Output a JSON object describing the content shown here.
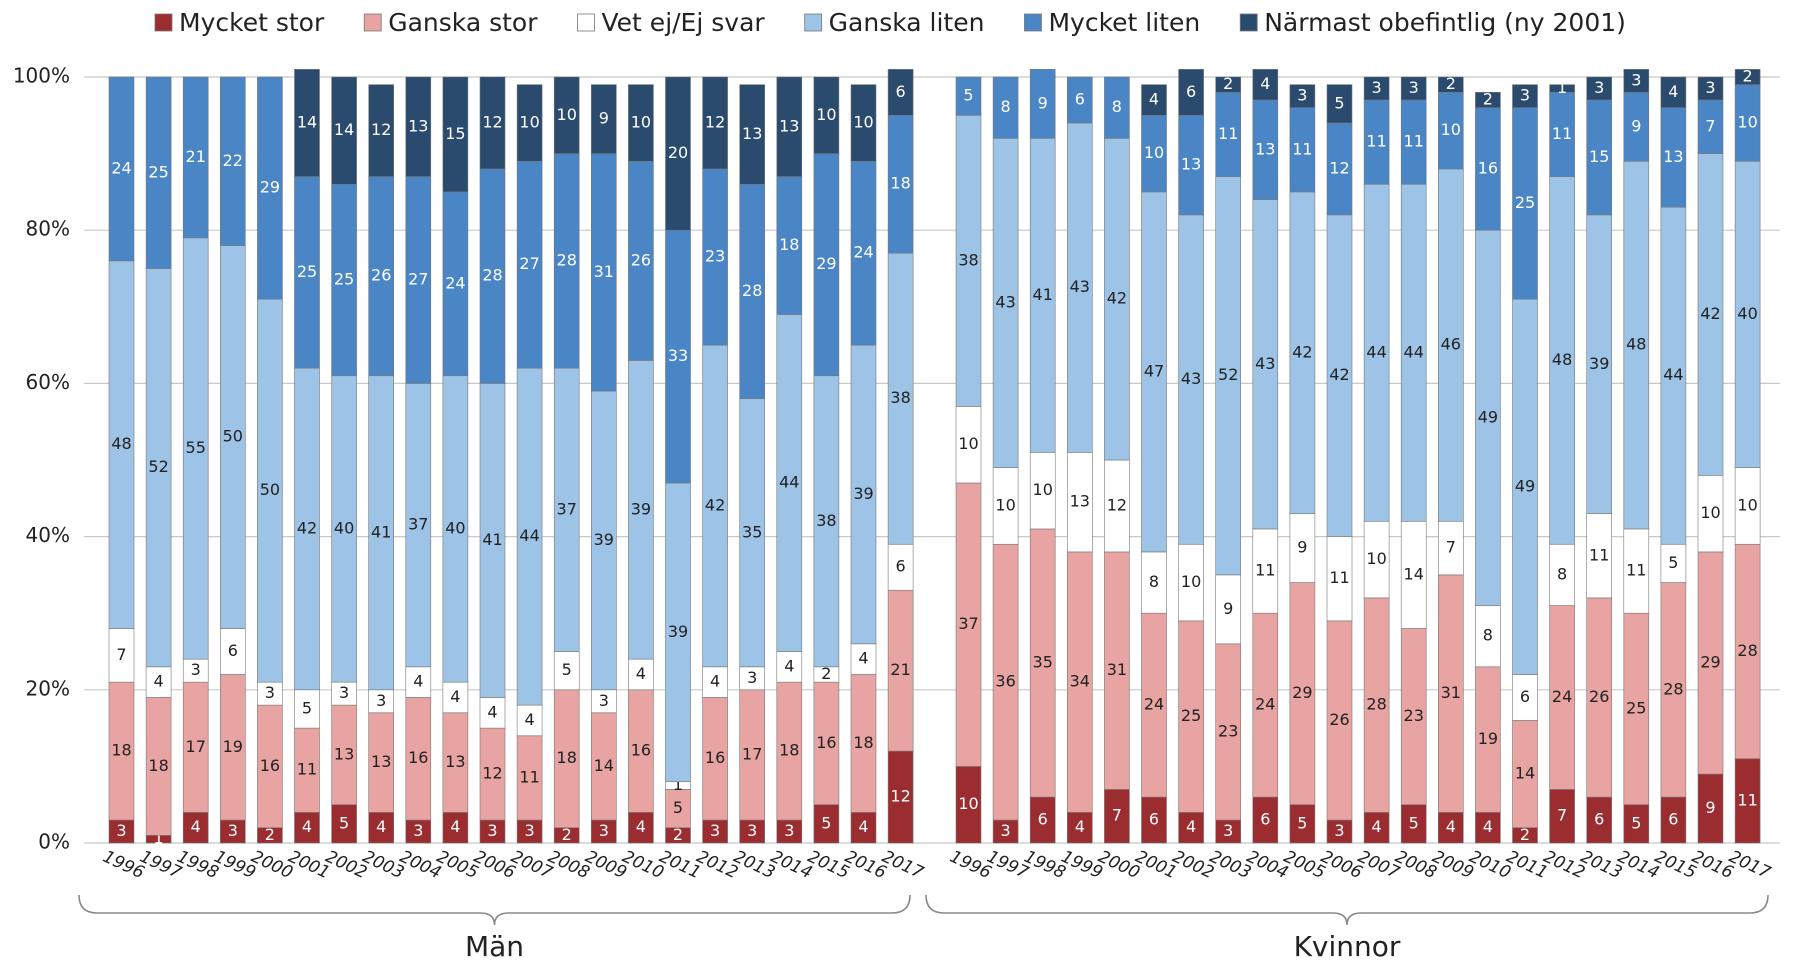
{
  "chart_data": {
    "type": "stacked_bar",
    "series": [
      {
        "name": "Mycket stor",
        "color": "#9b2d30",
        "values": [
          3,
          1,
          4,
          3,
          2,
          4,
          5,
          4,
          3,
          4,
          3,
          3,
          2,
          3,
          4,
          2,
          3,
          3,
          3,
          5,
          4,
          12,
          10,
          3,
          6,
          4,
          7,
          6,
          4,
          3,
          6,
          5,
          3,
          4,
          5,
          4,
          4,
          2,
          7,
          6,
          5,
          6,
          9,
          11
        ]
      },
      {
        "name": "Ganska stor",
        "color": "#e8a3a3",
        "values": [
          18,
          18,
          17,
          19,
          16,
          11,
          13,
          13,
          16,
          13,
          12,
          11,
          18,
          14,
          16,
          5,
          16,
          17,
          18,
          16,
          18,
          21,
          37,
          36,
          35,
          34,
          31,
          24,
          25,
          23,
          24,
          29,
          26,
          28,
          23,
          31,
          19,
          14,
          24,
          26,
          25,
          28,
          29,
          28
        ]
      },
      {
        "name": "Vet ej/Ej svar",
        "color": "#ffffff",
        "values": [
          7,
          4,
          3,
          6,
          3,
          5,
          3,
          3,
          4,
          4,
          4,
          4,
          5,
          3,
          4,
          1,
          4,
          3,
          4,
          2,
          4,
          6,
          10,
          10,
          10,
          13,
          12,
          8,
          10,
          9,
          11,
          9,
          11,
          10,
          14,
          7,
          8,
          6,
          8,
          11,
          11,
          5,
          10,
          10
        ]
      },
      {
        "name": "Ganska liten",
        "color": "#9dc3e6",
        "values": [
          48,
          52,
          55,
          50,
          50,
          42,
          40,
          41,
          37,
          40,
          41,
          44,
          37,
          39,
          39,
          39,
          42,
          35,
          44,
          38,
          39,
          38,
          38,
          43,
          41,
          43,
          42,
          47,
          43,
          52,
          43,
          42,
          42,
          44,
          44,
          46,
          49,
          49,
          48,
          39,
          48,
          44,
          42,
          40
        ]
      },
      {
        "name": "Mycket liten",
        "color": "#4a86c5",
        "values": [
          24,
          25,
          21,
          22,
          29,
          25,
          25,
          26,
          27,
          24,
          28,
          27,
          28,
          31,
          26,
          33,
          23,
          28,
          18,
          29,
          24,
          18,
          5,
          8,
          9,
          6,
          8,
          10,
          13,
          11,
          13,
          11,
          12,
          11,
          11,
          10,
          16,
          25,
          11,
          15,
          9,
          13,
          7,
          10
        ]
      },
      {
        "name": "Närmast obefintlig (ny 2001)",
        "color": "#2a4a6e",
        "values": [
          null,
          null,
          null,
          null,
          null,
          14,
          14,
          12,
          13,
          15,
          12,
          10,
          10,
          9,
          10,
          20,
          12,
          13,
          13,
          10,
          10,
          6,
          null,
          null,
          null,
          null,
          null,
          4,
          6,
          2,
          4,
          3,
          5,
          3,
          3,
          2,
          2,
          3,
          1,
          3,
          3,
          4,
          3,
          2
        ]
      }
    ],
    "groups": [
      {
        "name": "Män",
        "categories": [
          "1996",
          "1997",
          "1998",
          "1999",
          "2000",
          "2001",
          "2002",
          "2003",
          "2004",
          "2005",
          "2006",
          "2007",
          "2008",
          "2009",
          "2010",
          "2011",
          "2012",
          "2013",
          "2014",
          "2015",
          "2016",
          "2017"
        ]
      },
      {
        "name": "Kvinnor",
        "categories": [
          "1996",
          "1997",
          "1998",
          "1999",
          "2000",
          "2001",
          "2002",
          "2003",
          "2004",
          "2005",
          "2006",
          "2007",
          "2008",
          "2009",
          "2010",
          "2011",
          "2012",
          "2013",
          "2014",
          "2015",
          "2016",
          "2017"
        ]
      }
    ],
    "ylim": [
      0,
      100
    ],
    "yticks": [
      {
        "value": 0,
        "label": "0%"
      },
      {
        "value": 20,
        "label": "20%"
      },
      {
        "value": 40,
        "label": "40%"
      },
      {
        "value": 60,
        "label": "60%"
      },
      {
        "value": 80,
        "label": "80%"
      },
      {
        "value": 100,
        "label": "100%"
      }
    ],
    "grid": true,
    "legend": "top"
  }
}
